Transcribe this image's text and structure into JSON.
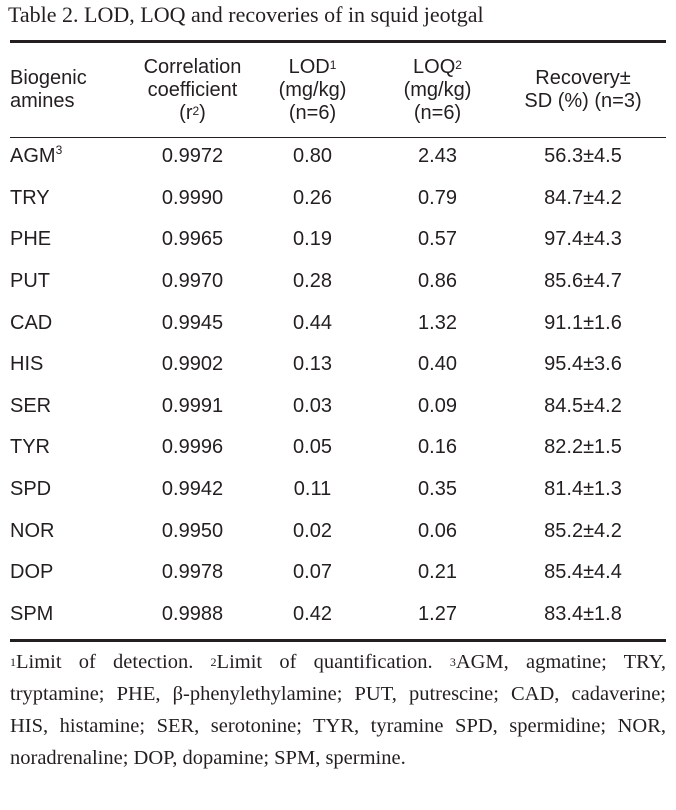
{
  "title": "Table 2. LOD, LOQ and recoveries of in squid jeotgal",
  "headers": {
    "amine": [
      "Biogenic",
      "amines"
    ],
    "corr": [
      "Correlation",
      "coefficient",
      "(r",
      "2",
      ")"
    ],
    "lod": [
      "LOD",
      "1",
      "(mg/kg)",
      "(n=6)"
    ],
    "loq": [
      "LOQ",
      "2",
      "(mg/kg)",
      "(n=6)"
    ],
    "recovery": [
      "Recovery±",
      "SD (%) (n=3)"
    ]
  },
  "rows": [
    {
      "amine": "AGM",
      "sup": "3",
      "corr": "0.9972",
      "lod": "0.80",
      "loq": "2.43",
      "rec": "56.3±4.5"
    },
    {
      "amine": "TRY",
      "sup": "",
      "corr": "0.9990",
      "lod": "0.26",
      "loq": "0.79",
      "rec": "84.7±4.2"
    },
    {
      "amine": "PHE",
      "sup": "",
      "corr": "0.9965",
      "lod": "0.19",
      "loq": "0.57",
      "rec": "97.4±4.3"
    },
    {
      "amine": "PUT",
      "sup": "",
      "corr": "0.9970",
      "lod": "0.28",
      "loq": "0.86",
      "rec": "85.6±4.7"
    },
    {
      "amine": "CAD",
      "sup": "",
      "corr": "0.9945",
      "lod": "0.44",
      "loq": "1.32",
      "rec": "91.1±1.6"
    },
    {
      "amine": "HIS",
      "sup": "",
      "corr": "0.9902",
      "lod": "0.13",
      "loq": "0.40",
      "rec": "95.4±3.6"
    },
    {
      "amine": "SER",
      "sup": "",
      "corr": "0.9991",
      "lod": "0.03",
      "loq": "0.09",
      "rec": "84.5±4.2"
    },
    {
      "amine": "TYR",
      "sup": "",
      "corr": "0.9996",
      "lod": "0.05",
      "loq": "0.16",
      "rec": "82.2±1.5"
    },
    {
      "amine": "SPD",
      "sup": "",
      "corr": "0.9942",
      "lod": "0.11",
      "loq": "0.35",
      "rec": "81.4±1.3"
    },
    {
      "amine": "NOR",
      "sup": "",
      "corr": "0.9950",
      "lod": "0.02",
      "loq": "0.06",
      "rec": "85.2±4.2"
    },
    {
      "amine": "DOP",
      "sup": "",
      "corr": "0.9978",
      "lod": "0.07",
      "loq": "0.21",
      "rec": "85.4±4.4"
    },
    {
      "amine": "SPM",
      "sup": "",
      "corr": "0.9988",
      "lod": "0.42",
      "loq": "1.27",
      "rec": "83.4±1.8"
    }
  ],
  "footnote": {
    "m1": "1",
    "t1": "Limit of detection. ",
    "m2": "2",
    "t2": "Limit of quantification. ",
    "m3": "3",
    "t3": "AGM, agmatine; TRY, tryptamine; PHE, β-phenylethylamine; PUT, putrescine; CAD, cadaverine; HIS, histamine; SER, serotonine; TYR, tyramine SPD, spermidine; NOR, noradrenaline; DOP, dopamine; SPM, spermine."
  }
}
